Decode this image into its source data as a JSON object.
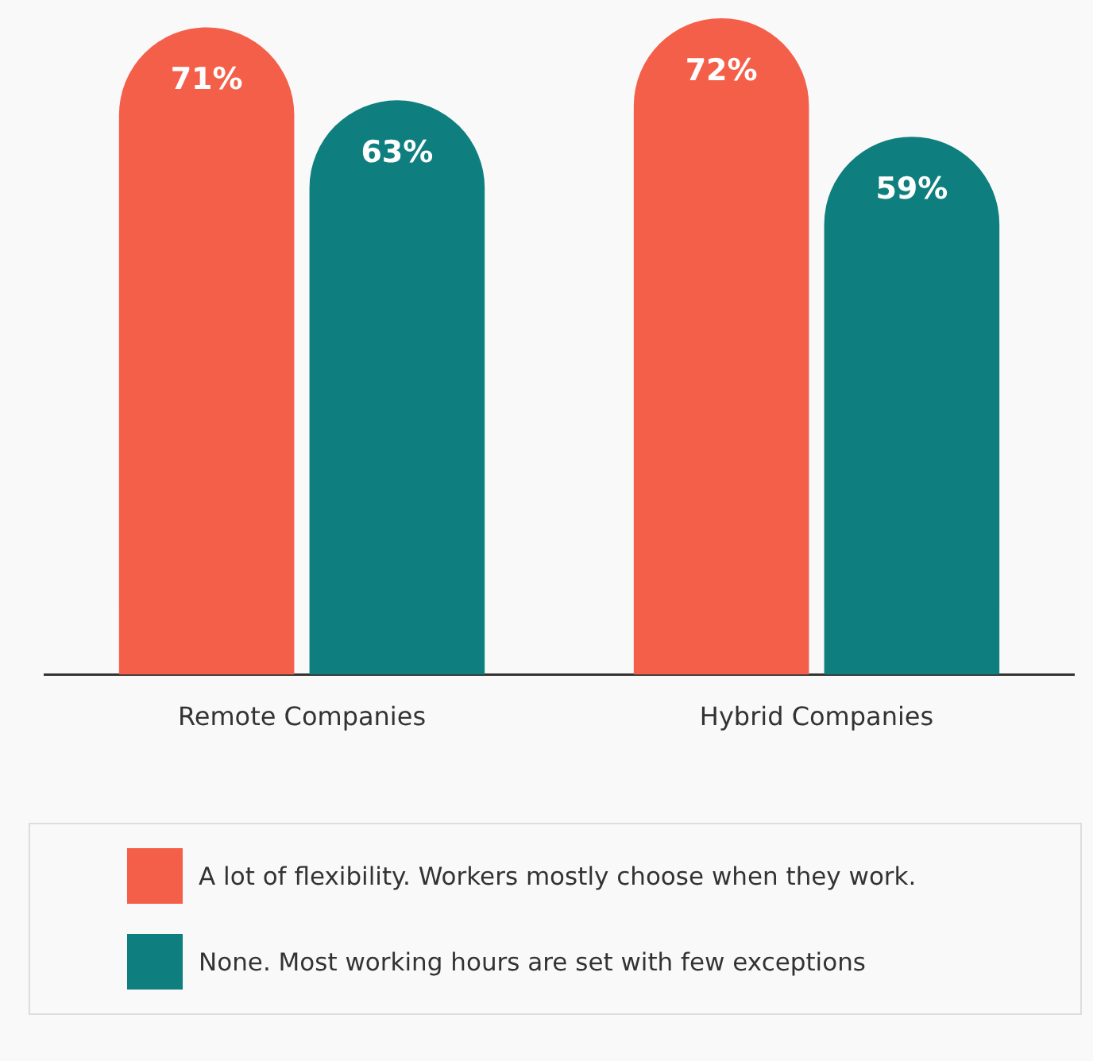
{
  "chart_data": {
    "type": "bar",
    "categories": [
      "Remote Companies",
      "Hybrid Companies"
    ],
    "ylim": [
      0,
      74
    ],
    "legend": "bottom",
    "grid": false,
    "series": [
      {
        "name": "A lot of flexibility. Workers mostly choose when they work.",
        "color": "#f45f4a",
        "values": [
          71,
          72
        ],
        "value_labels": [
          "71%",
          "72%"
        ]
      },
      {
        "name": "None. Most working hours are set with few exceptions",
        "color": "#0e7f7e",
        "values": [
          63,
          59
        ],
        "value_labels": [
          "63%",
          "59%"
        ]
      }
    ]
  }
}
